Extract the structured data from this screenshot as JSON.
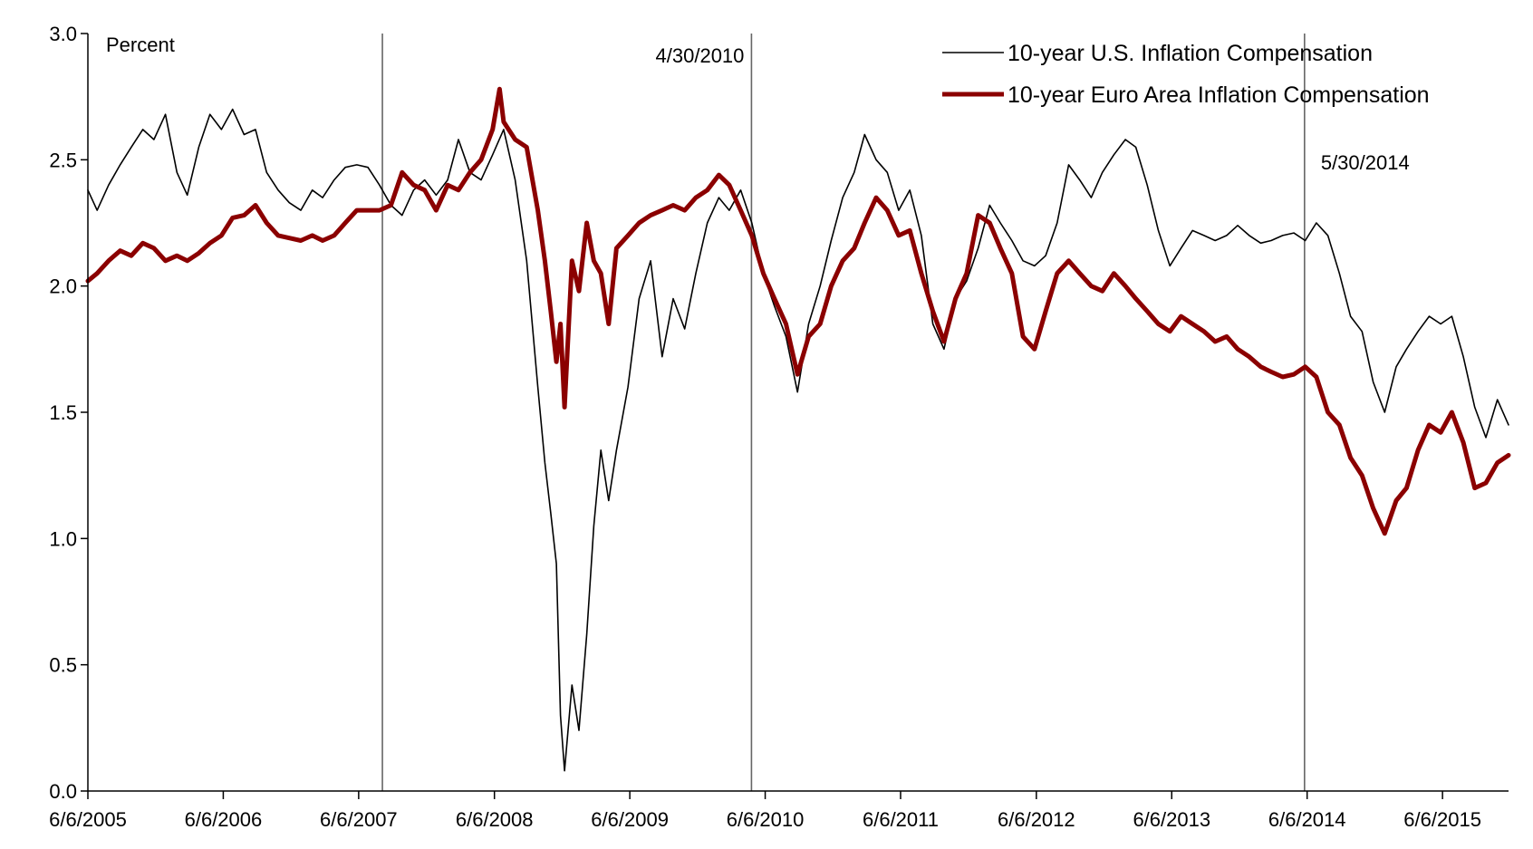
{
  "chart_data": {
    "type": "line",
    "ylabel": "Percent",
    "ylim": [
      0.0,
      3.0
    ],
    "xlim": [
      "2005-06-06",
      "2015-12-01"
    ],
    "y_ticks": [
      "0.0",
      "0.5",
      "1.0",
      "1.5",
      "2.0",
      "2.5",
      "3.0"
    ],
    "x_ticks": [
      {
        "date": "2005-06-06",
        "label": "6/6/2005"
      },
      {
        "date": "2006-06-06",
        "label": "6/6/2006"
      },
      {
        "date": "2007-06-06",
        "label": "6/6/2007"
      },
      {
        "date": "2008-06-06",
        "label": "6/6/2008"
      },
      {
        "date": "2009-06-06",
        "label": "6/6/2009"
      },
      {
        "date": "2010-06-06",
        "label": "6/6/2010"
      },
      {
        "date": "2011-06-06",
        "label": "6/6/2011"
      },
      {
        "date": "2012-06-06",
        "label": "6/6/2012"
      },
      {
        "date": "2013-06-06",
        "label": "6/6/2013"
      },
      {
        "date": "2014-06-06",
        "label": "6/6/2014"
      },
      {
        "date": "2015-06-06",
        "label": "6/6/2015"
      }
    ],
    "vlines": [
      {
        "date": "2007-08-09",
        "label": ""
      },
      {
        "date": "2010-04-30",
        "label": "4/30/2010"
      },
      {
        "date": "2014-05-30",
        "label": "5/30/2014"
      }
    ],
    "legend_position": "top-right",
    "series": [
      {
        "name": "10-year U.S. Inflation Compensation",
        "color": "#000000",
        "points": [
          [
            "2005-06-06",
            2.38
          ],
          [
            "2005-07-01",
            2.3
          ],
          [
            "2005-08-01",
            2.4
          ],
          [
            "2005-09-01",
            2.48
          ],
          [
            "2005-10-01",
            2.55
          ],
          [
            "2005-11-01",
            2.62
          ],
          [
            "2005-12-01",
            2.58
          ],
          [
            "2006-01-01",
            2.68
          ],
          [
            "2006-02-01",
            2.45
          ],
          [
            "2006-03-01",
            2.36
          ],
          [
            "2006-04-01",
            2.55
          ],
          [
            "2006-05-01",
            2.68
          ],
          [
            "2006-06-01",
            2.62
          ],
          [
            "2006-07-01",
            2.7
          ],
          [
            "2006-08-01",
            2.6
          ],
          [
            "2006-09-01",
            2.62
          ],
          [
            "2006-10-01",
            2.45
          ],
          [
            "2006-11-01",
            2.38
          ],
          [
            "2006-12-01",
            2.33
          ],
          [
            "2007-01-01",
            2.3
          ],
          [
            "2007-02-01",
            2.38
          ],
          [
            "2007-03-01",
            2.35
          ],
          [
            "2007-04-01",
            2.42
          ],
          [
            "2007-05-01",
            2.47
          ],
          [
            "2007-06-01",
            2.48
          ],
          [
            "2007-07-01",
            2.47
          ],
          [
            "2007-08-01",
            2.4
          ],
          [
            "2007-09-01",
            2.32
          ],
          [
            "2007-10-01",
            2.28
          ],
          [
            "2007-11-01",
            2.38
          ],
          [
            "2007-12-01",
            2.42
          ],
          [
            "2008-01-01",
            2.36
          ],
          [
            "2008-02-01",
            2.42
          ],
          [
            "2008-03-01",
            2.58
          ],
          [
            "2008-04-01",
            2.45
          ],
          [
            "2008-05-01",
            2.42
          ],
          [
            "2008-06-01",
            2.52
          ],
          [
            "2008-07-01",
            2.62
          ],
          [
            "2008-08-01",
            2.42
          ],
          [
            "2008-09-01",
            2.1
          ],
          [
            "2008-10-01",
            1.6
          ],
          [
            "2008-10-20",
            1.3
          ],
          [
            "2008-11-05",
            1.1
          ],
          [
            "2008-11-20",
            0.9
          ],
          [
            "2008-12-01",
            0.3
          ],
          [
            "2008-12-12",
            0.08
          ],
          [
            "2009-01-01",
            0.42
          ],
          [
            "2009-01-20",
            0.24
          ],
          [
            "2009-02-10",
            0.62
          ],
          [
            "2009-03-01",
            1.05
          ],
          [
            "2009-03-20",
            1.35
          ],
          [
            "2009-04-10",
            1.15
          ],
          [
            "2009-05-01",
            1.35
          ],
          [
            "2009-06-01",
            1.6
          ],
          [
            "2009-07-01",
            1.95
          ],
          [
            "2009-08-01",
            2.1
          ],
          [
            "2009-09-01",
            1.72
          ],
          [
            "2009-10-01",
            1.95
          ],
          [
            "2009-11-01",
            1.83
          ],
          [
            "2009-12-01",
            2.05
          ],
          [
            "2010-01-01",
            2.25
          ],
          [
            "2010-02-01",
            2.35
          ],
          [
            "2010-03-01",
            2.3
          ],
          [
            "2010-04-01",
            2.38
          ],
          [
            "2010-05-01",
            2.25
          ],
          [
            "2010-06-01",
            2.05
          ],
          [
            "2010-07-01",
            1.92
          ],
          [
            "2010-08-01",
            1.8
          ],
          [
            "2010-09-01",
            1.58
          ],
          [
            "2010-10-01",
            1.85
          ],
          [
            "2010-11-01",
            2.0
          ],
          [
            "2010-12-01",
            2.18
          ],
          [
            "2011-01-01",
            2.35
          ],
          [
            "2011-02-01",
            2.45
          ],
          [
            "2011-03-01",
            2.6
          ],
          [
            "2011-04-01",
            2.5
          ],
          [
            "2011-05-01",
            2.45
          ],
          [
            "2011-06-01",
            2.3
          ],
          [
            "2011-07-01",
            2.38
          ],
          [
            "2011-08-01",
            2.2
          ],
          [
            "2011-09-01",
            1.85
          ],
          [
            "2011-10-01",
            1.75
          ],
          [
            "2011-11-01",
            1.95
          ],
          [
            "2011-12-01",
            2.02
          ],
          [
            "2012-01-01",
            2.15
          ],
          [
            "2012-02-01",
            2.32
          ],
          [
            "2012-03-01",
            2.25
          ],
          [
            "2012-04-01",
            2.18
          ],
          [
            "2012-05-01",
            2.1
          ],
          [
            "2012-06-01",
            2.08
          ],
          [
            "2012-07-01",
            2.12
          ],
          [
            "2012-08-01",
            2.25
          ],
          [
            "2012-09-01",
            2.48
          ],
          [
            "2012-10-01",
            2.42
          ],
          [
            "2012-11-01",
            2.35
          ],
          [
            "2012-12-01",
            2.45
          ],
          [
            "2013-01-01",
            2.52
          ],
          [
            "2013-02-01",
            2.58
          ],
          [
            "2013-03-01",
            2.55
          ],
          [
            "2013-04-01",
            2.4
          ],
          [
            "2013-05-01",
            2.22
          ],
          [
            "2013-06-01",
            2.08
          ],
          [
            "2013-07-01",
            2.15
          ],
          [
            "2013-08-01",
            2.22
          ],
          [
            "2013-09-01",
            2.2
          ],
          [
            "2013-10-01",
            2.18
          ],
          [
            "2013-11-01",
            2.2
          ],
          [
            "2013-12-01",
            2.24
          ],
          [
            "2014-01-01",
            2.2
          ],
          [
            "2014-02-01",
            2.17
          ],
          [
            "2014-03-01",
            2.18
          ],
          [
            "2014-04-01",
            2.2
          ],
          [
            "2014-05-01",
            2.21
          ],
          [
            "2014-06-01",
            2.18
          ],
          [
            "2014-07-01",
            2.25
          ],
          [
            "2014-08-01",
            2.2
          ],
          [
            "2014-09-01",
            2.05
          ],
          [
            "2014-10-01",
            1.88
          ],
          [
            "2014-11-01",
            1.82
          ],
          [
            "2014-12-01",
            1.62
          ],
          [
            "2015-01-01",
            1.5
          ],
          [
            "2015-02-01",
            1.68
          ],
          [
            "2015-03-01",
            1.75
          ],
          [
            "2015-04-01",
            1.82
          ],
          [
            "2015-05-01",
            1.88
          ],
          [
            "2015-06-01",
            1.85
          ],
          [
            "2015-07-01",
            1.88
          ],
          [
            "2015-08-01",
            1.72
          ],
          [
            "2015-09-01",
            1.52
          ],
          [
            "2015-10-01",
            1.4
          ],
          [
            "2015-11-01",
            1.55
          ],
          [
            "2015-12-01",
            1.45
          ]
        ]
      },
      {
        "name": "10-year Euro Area Inflation Compensation",
        "color": "#8b0000",
        "points": [
          [
            "2005-06-06",
            2.02
          ],
          [
            "2005-07-01",
            2.05
          ],
          [
            "2005-08-01",
            2.1
          ],
          [
            "2005-09-01",
            2.14
          ],
          [
            "2005-10-01",
            2.12
          ],
          [
            "2005-11-01",
            2.17
          ],
          [
            "2005-12-01",
            2.15
          ],
          [
            "2006-01-01",
            2.1
          ],
          [
            "2006-02-01",
            2.12
          ],
          [
            "2006-03-01",
            2.1
          ],
          [
            "2006-04-01",
            2.13
          ],
          [
            "2006-05-01",
            2.17
          ],
          [
            "2006-06-01",
            2.2
          ],
          [
            "2006-07-01",
            2.27
          ],
          [
            "2006-08-01",
            2.28
          ],
          [
            "2006-09-01",
            2.32
          ],
          [
            "2006-10-01",
            2.25
          ],
          [
            "2006-11-01",
            2.2
          ],
          [
            "2006-12-01",
            2.19
          ],
          [
            "2007-01-01",
            2.18
          ],
          [
            "2007-02-01",
            2.2
          ],
          [
            "2007-03-01",
            2.18
          ],
          [
            "2007-04-01",
            2.2
          ],
          [
            "2007-05-01",
            2.25
          ],
          [
            "2007-06-01",
            2.3
          ],
          [
            "2007-07-01",
            2.3
          ],
          [
            "2007-08-01",
            2.3
          ],
          [
            "2007-09-01",
            2.32
          ],
          [
            "2007-10-01",
            2.45
          ],
          [
            "2007-11-01",
            2.4
          ],
          [
            "2007-12-01",
            2.38
          ],
          [
            "2008-01-01",
            2.3
          ],
          [
            "2008-02-01",
            2.4
          ],
          [
            "2008-03-01",
            2.38
          ],
          [
            "2008-04-01",
            2.45
          ],
          [
            "2008-05-01",
            2.5
          ],
          [
            "2008-06-01",
            2.62
          ],
          [
            "2008-06-20",
            2.78
          ],
          [
            "2008-07-01",
            2.65
          ],
          [
            "2008-08-01",
            2.58
          ],
          [
            "2008-09-01",
            2.55
          ],
          [
            "2008-10-01",
            2.3
          ],
          [
            "2008-10-20",
            2.1
          ],
          [
            "2008-11-05",
            1.9
          ],
          [
            "2008-11-20",
            1.7
          ],
          [
            "2008-12-01",
            1.85
          ],
          [
            "2008-12-12",
            1.52
          ],
          [
            "2009-01-01",
            2.1
          ],
          [
            "2009-01-20",
            1.98
          ],
          [
            "2009-02-10",
            2.25
          ],
          [
            "2009-03-01",
            2.1
          ],
          [
            "2009-03-20",
            2.05
          ],
          [
            "2009-04-10",
            1.85
          ],
          [
            "2009-05-01",
            2.15
          ],
          [
            "2009-06-01",
            2.2
          ],
          [
            "2009-07-01",
            2.25
          ],
          [
            "2009-08-01",
            2.28
          ],
          [
            "2009-09-01",
            2.3
          ],
          [
            "2009-10-01",
            2.32
          ],
          [
            "2009-11-01",
            2.3
          ],
          [
            "2009-12-01",
            2.35
          ],
          [
            "2010-01-01",
            2.38
          ],
          [
            "2010-02-01",
            2.44
          ],
          [
            "2010-03-01",
            2.4
          ],
          [
            "2010-04-01",
            2.3
          ],
          [
            "2010-05-01",
            2.2
          ],
          [
            "2010-06-01",
            2.05
          ],
          [
            "2010-07-01",
            1.95
          ],
          [
            "2010-08-01",
            1.85
          ],
          [
            "2010-09-01",
            1.65
          ],
          [
            "2010-10-01",
            1.8
          ],
          [
            "2010-11-01",
            1.85
          ],
          [
            "2010-12-01",
            2.0
          ],
          [
            "2011-01-01",
            2.1
          ],
          [
            "2011-02-01",
            2.15
          ],
          [
            "2011-03-01",
            2.25
          ],
          [
            "2011-04-01",
            2.35
          ],
          [
            "2011-05-01",
            2.3
          ],
          [
            "2011-06-01",
            2.2
          ],
          [
            "2011-07-01",
            2.22
          ],
          [
            "2011-08-01",
            2.05
          ],
          [
            "2011-09-01",
            1.9
          ],
          [
            "2011-10-01",
            1.78
          ],
          [
            "2011-11-01",
            1.95
          ],
          [
            "2011-12-01",
            2.05
          ],
          [
            "2012-01-01",
            2.28
          ],
          [
            "2012-02-01",
            2.25
          ],
          [
            "2012-03-01",
            2.15
          ],
          [
            "2012-04-01",
            2.05
          ],
          [
            "2012-05-01",
            1.8
          ],
          [
            "2012-06-01",
            1.75
          ],
          [
            "2012-07-01",
            1.9
          ],
          [
            "2012-08-01",
            2.05
          ],
          [
            "2012-09-01",
            2.1
          ],
          [
            "2012-10-01",
            2.05
          ],
          [
            "2012-11-01",
            2.0
          ],
          [
            "2012-12-01",
            1.98
          ],
          [
            "2013-01-01",
            2.05
          ],
          [
            "2013-02-01",
            2.0
          ],
          [
            "2013-03-01",
            1.95
          ],
          [
            "2013-04-01",
            1.9
          ],
          [
            "2013-05-01",
            1.85
          ],
          [
            "2013-06-01",
            1.82
          ],
          [
            "2013-07-01",
            1.88
          ],
          [
            "2013-08-01",
            1.85
          ],
          [
            "2013-09-01",
            1.82
          ],
          [
            "2013-10-01",
            1.78
          ],
          [
            "2013-11-01",
            1.8
          ],
          [
            "2013-12-01",
            1.75
          ],
          [
            "2014-01-01",
            1.72
          ],
          [
            "2014-02-01",
            1.68
          ],
          [
            "2014-03-01",
            1.66
          ],
          [
            "2014-04-01",
            1.64
          ],
          [
            "2014-05-01",
            1.65
          ],
          [
            "2014-06-01",
            1.68
          ],
          [
            "2014-07-01",
            1.64
          ],
          [
            "2014-08-01",
            1.5
          ],
          [
            "2014-09-01",
            1.45
          ],
          [
            "2014-10-01",
            1.32
          ],
          [
            "2014-11-01",
            1.25
          ],
          [
            "2014-12-01",
            1.12
          ],
          [
            "2015-01-01",
            1.02
          ],
          [
            "2015-02-01",
            1.15
          ],
          [
            "2015-03-01",
            1.2
          ],
          [
            "2015-04-01",
            1.35
          ],
          [
            "2015-05-01",
            1.45
          ],
          [
            "2015-06-01",
            1.42
          ],
          [
            "2015-07-01",
            1.5
          ],
          [
            "2015-08-01",
            1.38
          ],
          [
            "2015-09-01",
            1.2
          ],
          [
            "2015-10-01",
            1.22
          ],
          [
            "2015-11-01",
            1.3
          ],
          [
            "2015-12-01",
            1.33
          ]
        ]
      }
    ]
  }
}
